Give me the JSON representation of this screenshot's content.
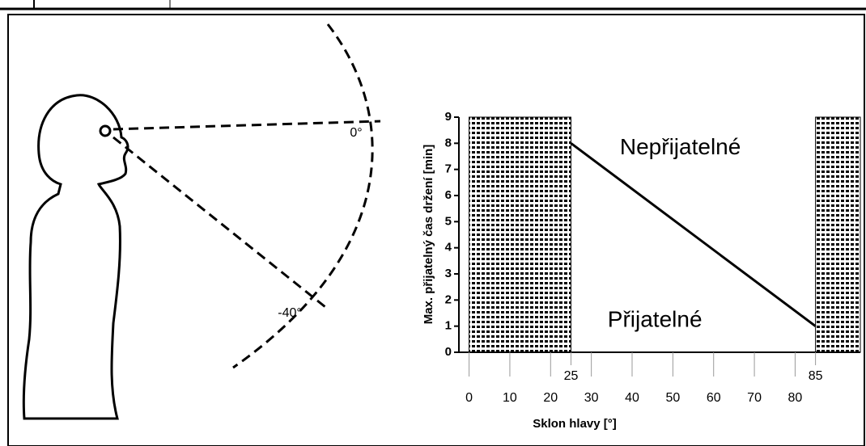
{
  "diagram": {
    "angle_labels": [
      "0°",
      "-40°"
    ]
  },
  "chart_data": {
    "type": "line",
    "x_label": "Sklon hlavy [°]",
    "y_label": "Max. přijatelný čas držení [min]",
    "x": [
      25,
      85
    ],
    "values": [
      8,
      1
    ],
    "color": "#000000",
    "xlim": [
      -2.5,
      96
    ],
    "ylim": [
      0,
      9
    ],
    "xticks": [
      0,
      10,
      20,
      30,
      40,
      50,
      60,
      70,
      80
    ],
    "xticks_upper": [
      25,
      85
    ],
    "yticks": [
      0,
      1,
      2,
      3,
      4,
      5,
      6,
      7,
      8,
      9
    ],
    "regions": [
      {
        "from": 0,
        "to": 25
      },
      {
        "from": 85,
        "to": 96
      }
    ],
    "annotations": [
      {
        "text": "Nepřijatelné",
        "x": 37,
        "y": 7.8
      },
      {
        "text": "Přijatelné",
        "x": 34,
        "y": 1.2
      }
    ]
  }
}
